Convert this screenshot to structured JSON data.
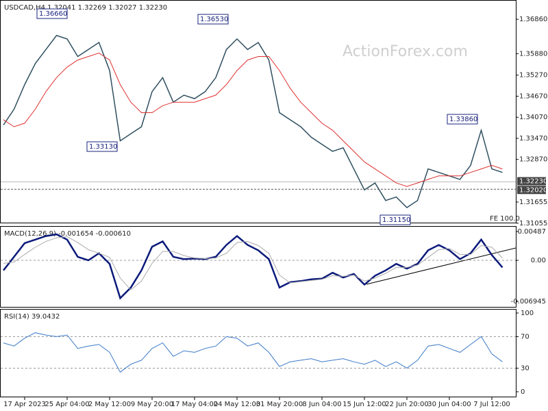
{
  "chart_data": [
    {
      "type": "line",
      "title": "USDCAD,H4  1.32041 1.32269 1.32027 1.32230",
      "watermark": "ActionForex.com",
      "fe_label": "FE 100.0",
      "ylim": [
        1.3107,
        1.3739
      ],
      "yticks": [
        {
          "value": 1.3686,
          "label": "1.36860"
        },
        {
          "value": 1.3588,
          "label": "1.35880"
        },
        {
          "value": 1.3527,
          "label": "1.35270"
        },
        {
          "value": 1.3467,
          "label": "1.34670"
        },
        {
          "value": 1.3407,
          "label": "1.34070"
        },
        {
          "value": 1.3347,
          "label": "1.33470"
        },
        {
          "value": 1.3287,
          "label": "1.32870"
        },
        {
          "value": 1.31655,
          "label": "1.31655"
        },
        {
          "value": 1.31055,
          "label": "1.31055"
        }
      ],
      "markers": [
        {
          "value": 1.3223,
          "label": "1.32230"
        },
        {
          "value": 1.3202,
          "label": "1.32020"
        }
      ],
      "annotations": [
        {
          "value": 1.3666,
          "label": "1.36660"
        },
        {
          "value": 1.3653,
          "label": "1.36530"
        },
        {
          "value": 1.3313,
          "label": "1.33130"
        },
        {
          "value": 1.3386,
          "label": "1.33860"
        },
        {
          "value": 1.3115,
          "label": "1.31150"
        }
      ],
      "series": [
        {
          "color": "#2f4f5f",
          "values": [
            1.3385,
            1.343,
            1.35,
            1.356,
            1.36,
            1.364,
            1.363,
            1.358,
            1.36,
            1.362,
            1.354,
            1.334,
            1.336,
            1.338,
            1.348,
            1.352,
            1.345,
            1.347,
            1.346,
            1.348,
            1.352,
            1.36,
            1.363,
            1.36,
            1.362,
            1.357,
            1.342,
            1.34,
            1.338,
            1.335,
            1.333,
            1.331,
            1.332,
            1.326,
            1.32,
            1.322,
            1.317,
            1.318,
            1.315,
            1.317,
            1.326,
            1.325,
            1.324,
            1.323,
            1.327,
            1.337,
            1.326,
            1.325
          ]
        },
        {
          "color": "#e03030",
          "values": [
            1.34,
            1.338,
            1.339,
            1.343,
            1.348,
            1.352,
            1.355,
            1.357,
            1.358,
            1.359,
            1.357,
            1.35,
            1.345,
            1.342,
            1.342,
            1.344,
            1.345,
            1.345,
            1.345,
            1.346,
            1.347,
            1.35,
            1.354,
            1.357,
            1.358,
            1.358,
            1.354,
            1.349,
            1.345,
            1.342,
            1.339,
            1.337,
            1.334,
            1.331,
            1.328,
            1.326,
            1.324,
            1.322,
            1.321,
            1.322,
            1.323,
            1.324,
            1.324,
            1.324,
            1.325,
            1.326,
            1.327,
            1.326
          ]
        }
      ]
    },
    {
      "type": "line",
      "title": "MACD(12,26,9) -0.001654 -0.000610",
      "ylim": [
        -0.00787,
        0.00568
      ],
      "yticks": [
        0.00487,
        {
          "value": 0,
          "label": "0.00"
        },
        -0.006945
      ],
      "levels": [
        0
      ],
      "series": [
        {
          "color": "#0b1a7a",
          "values": [
            -0.0017,
            0.0006,
            0.0029,
            0.0035,
            0.0041,
            0.0044,
            0.0035,
            0.0006,
            0,
            0.0012,
            -0.0006,
            -0.0064,
            -0.0046,
            -0.0017,
            0.0023,
            0.0032,
            0.0006,
            0.0002,
            0.0003,
            0.0002,
            0.0006,
            0.0026,
            0.0041,
            0.0026,
            0.0017,
            0.0002,
            -0.0046,
            -0.0037,
            -0.0035,
            -0.0032,
            -0.0031,
            -0.0021,
            -0.0029,
            -0.0023,
            -0.0041,
            -0.0026,
            -0.0017,
            -0.0006,
            -0.0014,
            -0.0006,
            0.0017,
            0.0026,
            0.0017,
            0.0002,
            0.0012,
            0.0035,
            0.0009,
            -0.0012
          ]
        },
        {
          "color": "#aaaaaa",
          "values": [
            -0.0005,
            -0.0003,
            0.001,
            0.0022,
            0.0032,
            0.0038,
            0.004,
            0.003,
            0.0018,
            0.0012,
            0.0005,
            -0.003,
            -0.005,
            -0.0035,
            -0.0005,
            0.0015,
            0.0015,
            0.0008,
            0.0004,
            0.0003,
            0.0004,
            0.0012,
            0.003,
            0.0032,
            0.0025,
            0.0012,
            -0.0025,
            -0.0038,
            -0.0036,
            -0.0034,
            -0.0032,
            -0.0026,
            -0.0027,
            -0.0025,
            -0.0035,
            -0.003,
            -0.0022,
            -0.0012,
            -0.0012,
            -0.0008,
            0.0005,
            0.0018,
            0.002,
            0.001,
            0.001,
            0.0025,
            0.0022,
            0.0004
          ]
        }
      ]
    },
    {
      "type": "line",
      "title": "RSI(14) 39.0432",
      "ylim": [
        -7,
        104.3
      ],
      "yticks": [
        100,
        70,
        30,
        0
      ],
      "levels": [
        70,
        30
      ],
      "categories": [
        null,
        null,
        "17 Apr 2023",
        null,
        null,
        null,
        "25 Apr 04:00",
        null,
        null,
        null,
        "2 May 12:00",
        null,
        null,
        null,
        "9 May 20:00",
        null,
        null,
        null,
        "17 May 04:00",
        null,
        null,
        null,
        "24 May 12:00",
        null,
        null,
        null,
        "31 May 20:00",
        null,
        null,
        null,
        "8 Jun 04:00",
        null,
        null,
        null,
        "15 Jun 12:00",
        null,
        null,
        null,
        "22 Jun 20:00",
        null,
        null,
        null,
        "30 Jun 04:00",
        null,
        null,
        null,
        "7 Jul 12:00",
        null
      ],
      "series": [
        {
          "color": "#3b7ac8",
          "values": [
            62,
            58,
            68,
            75,
            72,
            70,
            72,
            55,
            58,
            60,
            50,
            25,
            35,
            40,
            55,
            62,
            45,
            52,
            50,
            55,
            58,
            70,
            68,
            58,
            62,
            50,
            32,
            38,
            40,
            42,
            38,
            40,
            42,
            38,
            35,
            40,
            32,
            38,
            30,
            40,
            58,
            60,
            55,
            50,
            60,
            70,
            48,
            38
          ]
        }
      ]
    }
  ]
}
